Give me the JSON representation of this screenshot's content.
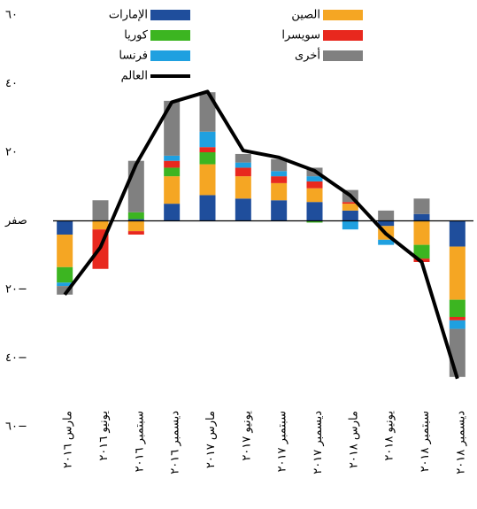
{
  "chart_data": {
    "type": "bar",
    "categories": [
      "مارس ٢٠١٦",
      "يونيو ٢٠١٦",
      "سبتمبر ٢٠١٦",
      "ديسمبر ٢٠١٦",
      "مارس ٢٠١٧",
      "يونيو ٢٠١٧",
      "سبتمبر ٢٠١٧",
      "ديسمبر ٢٠١٧",
      "مارس ٢٠١٨",
      "يونيو ٢٠١٨",
      "سبتمبر ٢٠١٨",
      "ديسمبر ٢٠١٨"
    ],
    "series": [
      {
        "name": "الإمارات",
        "color": "#1f4e9c",
        "values": [
          -4,
          0,
          0.5,
          5,
          7.5,
          6.5,
          6,
          5.5,
          3,
          -1.5,
          2,
          -7.5
        ]
      },
      {
        "name": "الصين",
        "color": "#f5a623",
        "values": [
          -9.5,
          -2.5,
          -3,
          8,
          9,
          6.5,
          5,
          4,
          2,
          -4,
          -7,
          -15.5
        ]
      },
      {
        "name": "كوريا",
        "color": "#3cb521",
        "values": [
          -4.5,
          0,
          2,
          2.5,
          3.5,
          0,
          0,
          -0.5,
          0,
          0,
          -4,
          -5
        ]
      },
      {
        "name": "سويسرا",
        "color": "#e8281e",
        "values": [
          0,
          -11.5,
          -1,
          2,
          1.5,
          2.5,
          2,
          2,
          0.5,
          0,
          -1,
          -1
        ]
      },
      {
        "name": "فرنسا",
        "color": "#1fa0e0",
        "values": [
          -1,
          0,
          0,
          1.5,
          4.5,
          1.5,
          1.5,
          1.5,
          -2.5,
          -1.5,
          0,
          -2.5
        ]
      },
      {
        "name": "أخرى",
        "color": "#808080",
        "values": [
          -2.5,
          6,
          15,
          16,
          11.5,
          2.5,
          3.5,
          2.5,
          3.5,
          3,
          4.5,
          -14
        ]
      },
      {
        "name": "العالم",
        "color": "#000000",
        "type": "line",
        "values": [
          -21.5,
          -7.7,
          16.5,
          34.6,
          37.7,
          20.5,
          18.5,
          14.6,
          7.4,
          -3.8,
          -12,
          -46
        ]
      }
    ],
    "ylim": [
      -60,
      60
    ],
    "yticks": [
      {
        "value": 60,
        "label": "٦٠"
      },
      {
        "value": 40,
        "label": "٤٠"
      },
      {
        "value": 20,
        "label": "٢٠"
      },
      {
        "value": 0,
        "label": "صفر"
      },
      {
        "value": -20,
        "label": "٢٠−"
      },
      {
        "value": -40,
        "label": "٤٠−"
      },
      {
        "value": -60,
        "label": "٦٠−"
      }
    ]
  }
}
